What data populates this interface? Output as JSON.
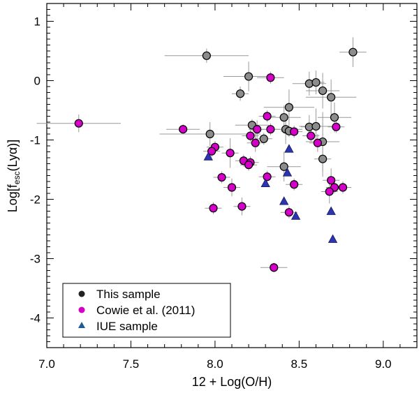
{
  "chart_data": {
    "type": "scatter",
    "title": "",
    "xlabel": "12 + Log(O/H)",
    "ylabel_parts": {
      "prefix": "Log[f",
      "sub": "esc",
      "mid": "(Ly",
      "greek": "α",
      "suffix": ")]"
    },
    "xlim": [
      7.0,
      9.2
    ],
    "ylim": [
      -4.5,
      1.3
    ],
    "xticks": [
      7.0,
      7.5,
      8.0,
      8.5,
      9.0
    ],
    "xtick_labels": [
      "7.0",
      "7.5",
      "8.0",
      "8.5",
      "9.0"
    ],
    "yticks": [
      1,
      0,
      -1,
      -2,
      -3,
      -4
    ],
    "ytick_labels": [
      "1",
      "0",
      "-1",
      "-2",
      "-3",
      "-4"
    ],
    "legend_position": "bottom-left",
    "colors": {
      "this_sample": "#8c8c8c",
      "cowie": "#d400c8",
      "iue": "#2b35b0",
      "errorbar": "#999999",
      "axis": "#000000"
    },
    "series": [
      {
        "name": "This sample",
        "marker": "circle",
        "points": [
          {
            "x": 7.95,
            "y": 0.42,
            "xerr": 0.25,
            "yerr": 0.12
          },
          {
            "x": 8.82,
            "y": 0.48,
            "xerr": 0.08,
            "yerr": 0.25
          },
          {
            "x": 8.2,
            "y": 0.07,
            "xerr": 0.15,
            "yerr": 0.25
          },
          {
            "x": 8.15,
            "y": -0.22,
            "xerr": 0.05,
            "yerr": 0.12
          },
          {
            "x": 8.56,
            "y": -0.05,
            "xerr": 0.1,
            "yerr": 0.2
          },
          {
            "x": 8.6,
            "y": -0.03,
            "xerr": 0.05,
            "yerr": 0.2
          },
          {
            "x": 8.64,
            "y": -0.17,
            "xerr": 0.1,
            "yerr": 0.3
          },
          {
            "x": 8.69,
            "y": -0.28,
            "xerr": 0.15,
            "yerr": 0.3
          },
          {
            "x": 8.44,
            "y": -0.45,
            "xerr": 0.15,
            "yerr": 0.3
          },
          {
            "x": 8.41,
            "y": -0.62,
            "xerr": 0.1,
            "yerr": 0.2
          },
          {
            "x": 8.71,
            "y": -0.62,
            "xerr": 0.1,
            "yerr": 0.25
          },
          {
            "x": 8.22,
            "y": -0.75,
            "xerr": 0.1,
            "yerr": 0.1
          },
          {
            "x": 8.56,
            "y": -0.78,
            "xerr": 0.05,
            "yerr": 0.2
          },
          {
            "x": 8.6,
            "y": -0.77,
            "xerr": 0.1,
            "yerr": 0.3
          },
          {
            "x": 8.42,
            "y": -0.82,
            "xerr": 0.1,
            "yerr": 0.25
          },
          {
            "x": 8.44,
            "y": -0.85,
            "xerr": 0.05,
            "yerr": 0.1
          },
          {
            "x": 7.97,
            "y": -0.9,
            "xerr": 0.3,
            "yerr": 0.2
          },
          {
            "x": 8.29,
            "y": -0.98,
            "xerr": 0.05,
            "yerr": 0.1
          },
          {
            "x": 8.64,
            "y": -1.03,
            "xerr": 0.1,
            "yerr": 0.5
          },
          {
            "x": 8.64,
            "y": -1.32,
            "xerr": 0.05,
            "yerr": 0.3
          },
          {
            "x": 8.41,
            "y": -1.45,
            "xerr": 0.1,
            "yerr": 0.25
          }
        ]
      },
      {
        "name": "Cowie et al. (2011)",
        "marker": "circle",
        "points": [
          {
            "x": 7.19,
            "y": -0.72,
            "xerr": 0.25,
            "yerr": 0.15
          },
          {
            "x": 7.81,
            "y": -0.82,
            "xerr": 0.1,
            "yerr": 0.08
          },
          {
            "x": 8.33,
            "y": 0.05,
            "xerr": 0.08,
            "yerr": 0.1
          },
          {
            "x": 8.31,
            "y": -0.6,
            "xerr": 0.05,
            "yerr": 0.1
          },
          {
            "x": 8.25,
            "y": -0.82,
            "xerr": 0.05,
            "yerr": 0.15
          },
          {
            "x": 8.33,
            "y": -0.82,
            "xerr": 0.08,
            "yerr": 0.1
          },
          {
            "x": 8.47,
            "y": -0.86,
            "xerr": 0.05,
            "yerr": 0.1
          },
          {
            "x": 8.21,
            "y": -0.93,
            "xerr": 0.05,
            "yerr": 0.1
          },
          {
            "x": 8.57,
            "y": -0.93,
            "xerr": 0.05,
            "yerr": 0.1
          },
          {
            "x": 8.72,
            "y": -0.78,
            "xerr": 0.05,
            "yerr": 0.1
          },
          {
            "x": 8.61,
            "y": -1.05,
            "xerr": 0.05,
            "yerr": 0.15
          },
          {
            "x": 8.24,
            "y": -1.05,
            "xerr": 0.05,
            "yerr": 0.15
          },
          {
            "x": 8.0,
            "y": -1.12,
            "xerr": 0.05,
            "yerr": 0.1
          },
          {
            "x": 7.98,
            "y": -1.19,
            "xerr": 0.05,
            "yerr": 0.1
          },
          {
            "x": 8.09,
            "y": -1.22,
            "xerr": 0.05,
            "yerr": 0.25
          },
          {
            "x": 8.17,
            "y": -1.35,
            "xerr": 0.05,
            "yerr": 0.1
          },
          {
            "x": 8.21,
            "y": -1.38,
            "xerr": 0.05,
            "yerr": 0.1
          },
          {
            "x": 8.2,
            "y": -1.42,
            "xerr": 0.05,
            "yerr": 0.1
          },
          {
            "x": 8.04,
            "y": -1.63,
            "xerr": 0.05,
            "yerr": 0.1
          },
          {
            "x": 8.31,
            "y": -1.62,
            "xerr": 0.05,
            "yerr": 0.1
          },
          {
            "x": 8.47,
            "y": -1.75,
            "xerr": 0.05,
            "yerr": 0.1
          },
          {
            "x": 8.1,
            "y": -1.8,
            "xerr": 0.05,
            "yerr": 0.15
          },
          {
            "x": 8.69,
            "y": -1.68,
            "xerr": 0.05,
            "yerr": 0.2
          },
          {
            "x": 8.71,
            "y": -1.8,
            "xerr": 0.05,
            "yerr": 0.1
          },
          {
            "x": 8.76,
            "y": -1.8,
            "xerr": 0.05,
            "yerr": 0.1
          },
          {
            "x": 8.68,
            "y": -1.87,
            "xerr": 0.05,
            "yerr": 0.2
          },
          {
            "x": 7.99,
            "y": -2.15,
            "xerr": 0.05,
            "yerr": 0.1
          },
          {
            "x": 8.16,
            "y": -2.12,
            "xerr": 0.05,
            "yerr": 0.15
          },
          {
            "x": 8.44,
            "y": -2.22,
            "xerr": 0.05,
            "yerr": 0.1
          },
          {
            "x": 8.35,
            "y": -3.15,
            "xerr": 0.08,
            "yerr": 0.08
          }
        ]
      },
      {
        "name": "IUE sample",
        "marker": "triangle",
        "points": [
          {
            "x": 7.96,
            "y": -1.28
          },
          {
            "x": 8.44,
            "y": -1.15
          },
          {
            "x": 8.43,
            "y": -1.55
          },
          {
            "x": 8.3,
            "y": -1.73
          },
          {
            "x": 8.41,
            "y": -2.03
          },
          {
            "x": 8.48,
            "y": -2.28
          },
          {
            "x": 8.69,
            "y": -2.2
          },
          {
            "x": 8.7,
            "y": -2.67
          }
        ]
      }
    ]
  }
}
